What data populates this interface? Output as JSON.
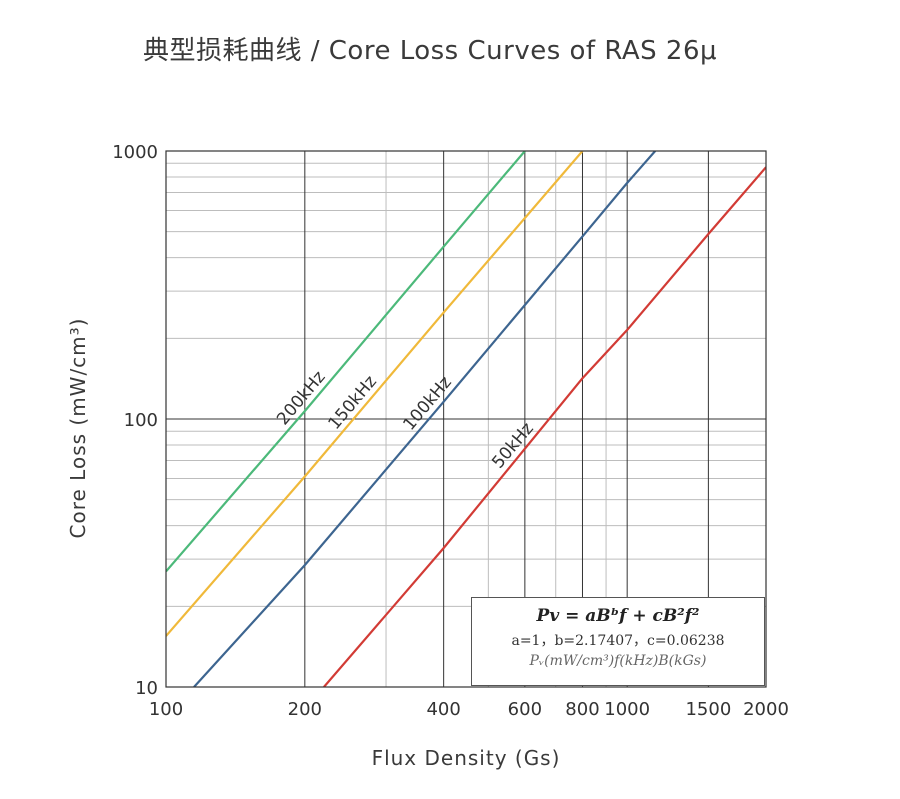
{
  "title": "典型损耗曲线 / Core Loss Curves of RAS 26μ",
  "formula": {
    "equation": "Pv = aBᵇf + cB²f²",
    "coefficients": "a=1，b=2.17407，c=0.06238",
    "units": "Pᵥ(mW/cm³)f(kHz)B(kGs)"
  },
  "chart_data": {
    "type": "line",
    "title": "Core Loss Curves of RAS 26μ",
    "xlabel": "Flux Density (Gs)",
    "ylabel": "Core Loss (mW/cm³)",
    "xscale": "log",
    "yscale": "log",
    "xlim": [
      100,
      2000
    ],
    "ylim": [
      10,
      1000
    ],
    "x_ticks": [
      100,
      200,
      400,
      600,
      800,
      1000,
      1500,
      2000
    ],
    "x_tick_labels": [
      "100",
      "200",
      "400",
      "600",
      "800",
      "1000",
      "1500",
      "2000"
    ],
    "y_ticks": [
      10,
      100,
      1000
    ],
    "y_tick_labels": [
      "10",
      "100",
      "1000"
    ],
    "grid": true,
    "legend": "none (curves labeled inline)",
    "series": [
      {
        "name": "200kHz",
        "color": "#4cb97a",
        "x": [
          100,
          200,
          400,
          600
        ],
        "y": [
          27,
          107,
          440,
          1000
        ]
      },
      {
        "name": "150kHz",
        "color": "#f0b93a",
        "x": [
          100,
          200,
          400,
          800
        ],
        "y": [
          15.5,
          61,
          250,
          1000
        ]
      },
      {
        "name": "100kHz",
        "color": "#3d6590",
        "x": [
          115,
          200,
          400,
          800,
          1000,
          1150
        ],
        "y": [
          10,
          28.5,
          116,
          480,
          760,
          1000
        ]
      },
      {
        "name": "50kHz",
        "color": "#d23b35",
        "x": [
          220,
          400,
          800,
          1000,
          1500,
          2000
        ],
        "y": [
          10,
          33,
          142,
          215,
          490,
          870
        ]
      }
    ]
  }
}
